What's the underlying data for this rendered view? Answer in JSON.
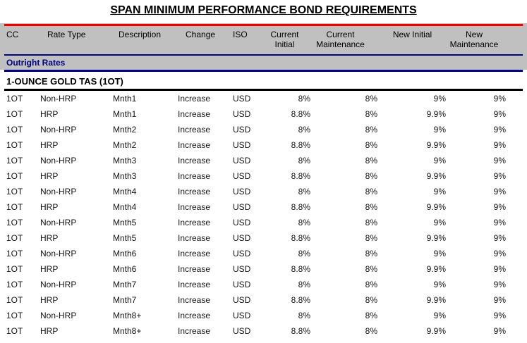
{
  "title": "SPAN MINIMUM PERFORMANCE BOND REQUIREMENTS",
  "table": {
    "columns": [
      {
        "id": "cc",
        "label": "CC"
      },
      {
        "id": "rate-type",
        "label": "Rate Type"
      },
      {
        "id": "description",
        "label": "Description"
      },
      {
        "id": "change",
        "label": "Change"
      },
      {
        "id": "iso",
        "label": "ISO"
      },
      {
        "id": "current-initial",
        "label": "Current\nInitial"
      },
      {
        "id": "current-maintenance",
        "label": "Current\nMaintenance"
      },
      {
        "id": "new-initial",
        "label": "New Initial"
      },
      {
        "id": "new-maintenance",
        "label": "New\nMaintenance"
      }
    ],
    "group_header": "Outright Rates",
    "section_title": "1-OUNCE GOLD TAS (1OT)",
    "rows": [
      [
        "1OT",
        "Non-HRP",
        "Mnth1",
        "Increase",
        "USD",
        "8%",
        "8%",
        "9%",
        "9%"
      ],
      [
        "1OT",
        "HRP",
        "Mnth1",
        "Increase",
        "USD",
        "8.8%",
        "8%",
        "9.9%",
        "9%"
      ],
      [
        "1OT",
        "Non-HRP",
        "Mnth2",
        "Increase",
        "USD",
        "8%",
        "8%",
        "9%",
        "9%"
      ],
      [
        "1OT",
        "HRP",
        "Mnth2",
        "Increase",
        "USD",
        "8.8%",
        "8%",
        "9.9%",
        "9%"
      ],
      [
        "1OT",
        "Non-HRP",
        "Mnth3",
        "Increase",
        "USD",
        "8%",
        "8%",
        "9%",
        "9%"
      ],
      [
        "1OT",
        "HRP",
        "Mnth3",
        "Increase",
        "USD",
        "8.8%",
        "8%",
        "9.9%",
        "9%"
      ],
      [
        "1OT",
        "Non-HRP",
        "Mnth4",
        "Increase",
        "USD",
        "8%",
        "8%",
        "9%",
        "9%"
      ],
      [
        "1OT",
        "HRP",
        "Mnth4",
        "Increase",
        "USD",
        "8.8%",
        "8%",
        "9.9%",
        "9%"
      ],
      [
        "1OT",
        "Non-HRP",
        "Mnth5",
        "Increase",
        "USD",
        "8%",
        "8%",
        "9%",
        "9%"
      ],
      [
        "1OT",
        "HRP",
        "Mnth5",
        "Increase",
        "USD",
        "8.8%",
        "8%",
        "9.9%",
        "9%"
      ],
      [
        "1OT",
        "Non-HRP",
        "Mnth6",
        "Increase",
        "USD",
        "8%",
        "8%",
        "9%",
        "9%"
      ],
      [
        "1OT",
        "HRP",
        "Mnth6",
        "Increase",
        "USD",
        "8.8%",
        "8%",
        "9.9%",
        "9%"
      ],
      [
        "1OT",
        "Non-HRP",
        "Mnth7",
        "Increase",
        "USD",
        "8%",
        "8%",
        "9%",
        "9%"
      ],
      [
        "1OT",
        "HRP",
        "Mnth7",
        "Increase",
        "USD",
        "8.8%",
        "8%",
        "9.9%",
        "9%"
      ],
      [
        "1OT",
        "Non-HRP",
        "Mnth8+",
        "Increase",
        "USD",
        "8%",
        "8%",
        "9%",
        "9%"
      ],
      [
        "1OT",
        "HRP",
        "Mnth8+",
        "Increase",
        "USD",
        "8.8%",
        "8%",
        "9.9%",
        "9%"
      ]
    ]
  },
  "colors": {
    "header_background": "#c0c0c0",
    "rule_red": "#ee0000",
    "rule_navy": "#000080",
    "group_header_text": "#000080",
    "text": "#141414"
  }
}
